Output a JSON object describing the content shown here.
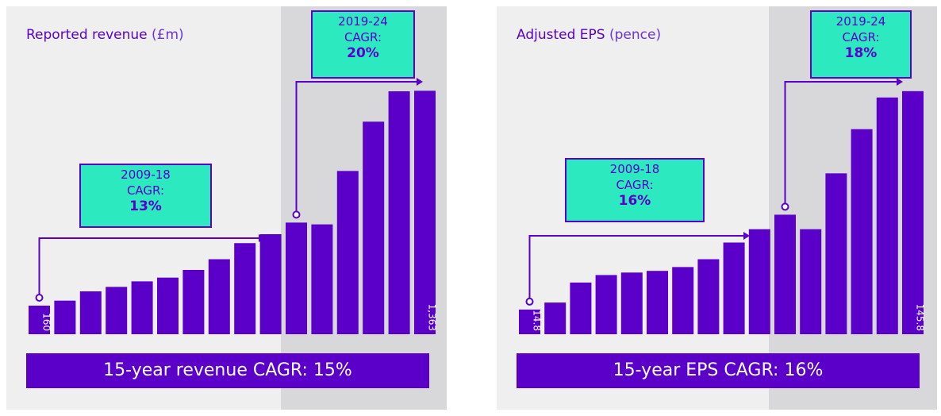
{
  "colors": {
    "bar": "#5a00c8",
    "accent_box": "#2de9c0",
    "panel_bg": "#efefef",
    "highlight_bg": "#d8d8db",
    "text_purple": "#5a00c8"
  },
  "chart_data": [
    {
      "type": "bar",
      "title": "Reported revenue",
      "unit": "(£m)",
      "values": [
        160,
        188,
        240,
        265,
        296,
        317,
        360,
        420,
        510,
        560,
        625,
        615,
        914,
        1190,
        1360,
        1363
      ],
      "first_label": "160",
      "last_label": "1,363",
      "highlight_from_index": 10,
      "ylim": [
        0,
        1400
      ],
      "annotations": [
        {
          "period": "2009-18",
          "label": "CAGR:",
          "value": "13%"
        },
        {
          "period": "2019-24",
          "label": "CAGR:",
          "value": "20%"
        }
      ],
      "footer": "15-year revenue CAGR: 15%"
    },
    {
      "type": "bar",
      "title": "Adjusted EPS",
      "unit": "(pence)",
      "values": [
        14.8,
        19.0,
        31.0,
        35.5,
        37.0,
        38.0,
        40.3,
        45.0,
        55.0,
        63.0,
        71.7,
        63.0,
        96.5,
        123.0,
        142.0,
        145.8
      ],
      "first_label": "14.8",
      "last_label": "145.8",
      "highlight_from_index": 10,
      "ylim": [
        0,
        150
      ],
      "annotations": [
        {
          "period": "2009-18",
          "label": "CAGR:",
          "value": "16%"
        },
        {
          "period": "2019-24",
          "label": "CAGR:",
          "value": "18%"
        }
      ],
      "footer": "15-year EPS CAGR: 16%"
    }
  ]
}
